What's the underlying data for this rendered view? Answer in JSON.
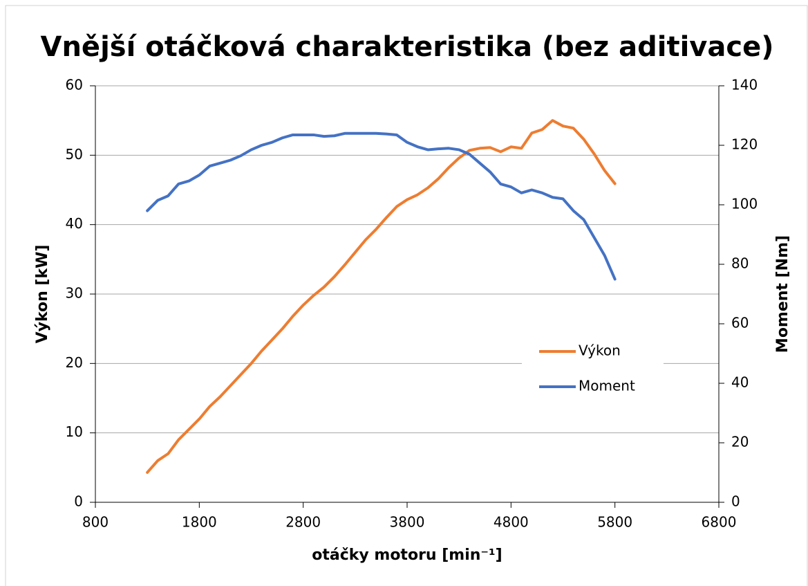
{
  "chart_data": {
    "type": "line",
    "title": "Vnější otáčková charakteristika (bez aditivace)",
    "xlabel": "otáčky motoru [min⁻¹]",
    "ylabel": "Výkon [kW]",
    "y2label": "Moment [Nm]",
    "x": [
      1300,
      1400,
      1500,
      1600,
      1700,
      1800,
      1900,
      2000,
      2100,
      2200,
      2300,
      2400,
      2500,
      2600,
      2700,
      2800,
      2900,
      3000,
      3100,
      3200,
      3300,
      3400,
      3500,
      3600,
      3700,
      3800,
      3900,
      4000,
      4100,
      4200,
      4300,
      4400,
      4500,
      4600,
      4700,
      4800,
      4900,
      5000,
      5100,
      5200,
      5300,
      5400,
      5500,
      5600,
      5700,
      5800
    ],
    "series": [
      {
        "name": "Výkon",
        "color": "#ed7d31",
        "values": [
          4.3,
          6.0,
          7.0,
          9.0,
          10.5,
          12.0,
          13.8,
          15.2,
          16.8,
          18.4,
          20.0,
          21.8,
          23.4,
          25.0,
          26.8,
          28.4,
          29.8,
          31.0,
          32.5,
          34.2,
          36.0,
          37.8,
          39.3,
          41.0,
          42.6,
          43.6,
          44.3,
          45.3,
          46.6,
          48.2,
          49.6,
          50.7,
          51.0,
          51.1,
          50.5,
          51.2,
          51.0,
          53.2,
          53.7,
          55.0,
          54.2,
          53.9,
          52.3,
          50.2,
          47.8,
          45.9
        ]
      },
      {
        "name": "Moment",
        "color": "#4472c4",
        "axis": "y2",
        "values": [
          98,
          101.5,
          103,
          107,
          108,
          110,
          113,
          114,
          115,
          116.5,
          118.5,
          120,
          121,
          122.5,
          123.5,
          123.5,
          123.5,
          123,
          123.2,
          124,
          124,
          124,
          124,
          123.8,
          123.5,
          121,
          119.5,
          118.5,
          118.8,
          119,
          118.5,
          117,
          114,
          111,
          107,
          106,
          104,
          105,
          104,
          102.5,
          102,
          98,
          95,
          89,
          83,
          75
        ]
      }
    ],
    "xlim": [
      800,
      6800
    ],
    "xticks": [
      800,
      1800,
      2800,
      3800,
      4800,
      5800,
      6800
    ],
    "ylim": [
      0,
      60
    ],
    "yticks": [
      0,
      10,
      20,
      30,
      40,
      50,
      60
    ],
    "y2lim": [
      0,
      140
    ],
    "y2ticks": [
      0,
      20,
      40,
      60,
      80,
      100,
      120,
      140
    ],
    "grid": true,
    "legend": "right"
  }
}
